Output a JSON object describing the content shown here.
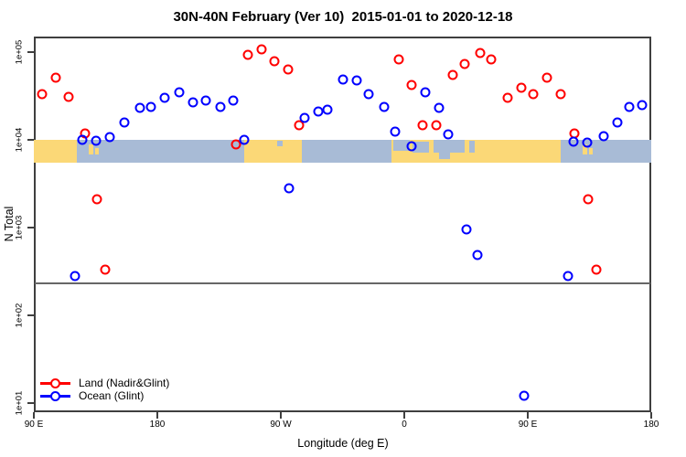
{
  "title": "30N-40N February (Ver 10)  2015-01-01 to 2020-12-18",
  "chart_data": {
    "type": "scatter",
    "title": "30N-40N February (Ver 10)  2015-01-01 to 2020-12-18",
    "xlabel": "Longitude (deg E)",
    "ylabel": "N Total",
    "y_scale": "log10",
    "y_ticks": [
      {
        "value": 10,
        "label": "1e+01"
      },
      {
        "value": 100,
        "label": "1e+02"
      },
      {
        "value": 1000,
        "label": "1e+03"
      },
      {
        "value": 10000,
        "label": "1e+04"
      },
      {
        "value": 100000,
        "label": "1e+05"
      }
    ],
    "x_axis_wraps": true,
    "x_range_deg": [
      90,
      540
    ],
    "x_ticks": [
      {
        "pos": 90,
        "label": "90 E"
      },
      {
        "pos": 180,
        "label": "180"
      },
      {
        "pos": 270,
        "label": "90 W"
      },
      {
        "pos": 360,
        "label": "0"
      },
      {
        "pos": 450,
        "label": "90 E"
      },
      {
        "pos": 540,
        "label": "180"
      }
    ],
    "grid": "off",
    "legend_position": "bottom-left",
    "cutoff_line_value": 230,
    "map_band": {
      "description": "land/ocean strip of the 30N-40N latitude belt",
      "top_value": 10000,
      "bottom_value": 5500,
      "land_color": "#FBD877",
      "ocean_color": "#A8BBD6",
      "segments": [
        {
          "type": "land",
          "x0": 90,
          "x1": 121.3
        },
        {
          "type": "ocean",
          "x0": 121.3,
          "x1": 243.3
        },
        {
          "type": "land",
          "x0": 130,
          "x1": 133,
          "top": 0.2,
          "h": 0.45
        },
        {
          "type": "land",
          "x0": 134.5,
          "x1": 137.5,
          "top": 0.35,
          "h": 0.3
        },
        {
          "type": "land",
          "x0": 243.3,
          "x1": 285.3
        },
        {
          "type": "ocean",
          "x0": 267.5,
          "x1": 271,
          "top": 0.05,
          "h": 0.25
        },
        {
          "type": "ocean",
          "x0": 285.3,
          "x1": 350.7
        },
        {
          "type": "land",
          "x0": 350.7,
          "x1": 474
        },
        {
          "type": "ocean",
          "x0": 352,
          "x1": 364,
          "top": 0,
          "h": 0.5
        },
        {
          "type": "ocean",
          "x0": 366,
          "x1": 378,
          "top": 0.1,
          "h": 0.45
        },
        {
          "type": "ocean",
          "x0": 381,
          "x1": 404,
          "top": 0,
          "h": 0.55
        },
        {
          "type": "ocean",
          "x0": 385,
          "x1": 393,
          "top": 0.55,
          "h": 0.3
        },
        {
          "type": "ocean",
          "x0": 407,
          "x1": 411,
          "top": 0.05,
          "h": 0.5
        },
        {
          "type": "ocean",
          "x0": 474,
          "x1": 540
        },
        {
          "type": "land",
          "x0": 490,
          "x1": 493,
          "top": 0.2,
          "h": 0.45
        },
        {
          "type": "land",
          "x0": 494.5,
          "x1": 497.5,
          "top": 0.35,
          "h": 0.3
        }
      ]
    },
    "series": [
      {
        "name": "Land (Nadir&Glint)",
        "color": "#FF0000",
        "marker": "open-circle",
        "points": [
          [
            96,
            33000
          ],
          [
            106,
            51000
          ],
          [
            115,
            31000
          ],
          [
            127,
            11800
          ],
          [
            136,
            2100
          ],
          [
            142,
            330
          ],
          [
            237,
            8900
          ],
          [
            246,
            93000
          ],
          [
            256,
            107000
          ],
          [
            265,
            78000
          ],
          [
            275,
            63000
          ],
          [
            283,
            14700
          ],
          [
            356,
            83000
          ],
          [
            365,
            42000
          ],
          [
            373,
            14800
          ],
          [
            383,
            14800
          ],
          [
            395,
            55000
          ],
          [
            404,
            73000
          ],
          [
            415,
            98000
          ],
          [
            423,
            83000
          ],
          [
            435,
            30000
          ],
          [
            445,
            39000
          ],
          [
            454,
            33000
          ],
          [
            464,
            51000
          ],
          [
            474,
            33000
          ],
          [
            484,
            11800
          ],
          [
            494,
            2100
          ],
          [
            500,
            330
          ]
        ]
      },
      {
        "name": "Ocean (Glint)",
        "color": "#0000FF",
        "marker": "open-circle",
        "points": [
          [
            120,
            280
          ],
          [
            125,
            10000
          ],
          [
            135,
            9800
          ],
          [
            145,
            10700
          ],
          [
            156,
            15800
          ],
          [
            167,
            23000
          ],
          [
            175,
            23500
          ],
          [
            185,
            30000
          ],
          [
            196,
            35000
          ],
          [
            206,
            27000
          ],
          [
            215,
            28000
          ],
          [
            226,
            23500
          ],
          [
            235,
            28000
          ],
          [
            243,
            10000
          ],
          [
            276,
            2800
          ],
          [
            287,
            17800
          ],
          [
            297,
            21000
          ],
          [
            304,
            22000
          ],
          [
            315,
            49000
          ],
          [
            325,
            48000
          ],
          [
            334,
            33000
          ],
          [
            345,
            23500
          ],
          [
            353,
            12400
          ],
          [
            365,
            8500
          ],
          [
            375,
            35000
          ],
          [
            385,
            23000
          ],
          [
            392,
            11600
          ],
          [
            405,
            950
          ],
          [
            413,
            490
          ],
          [
            447,
            12
          ],
          [
            479,
            280
          ],
          [
            483,
            9600
          ],
          [
            493,
            9400
          ],
          [
            505,
            10900
          ],
          [
            515,
            15800
          ],
          [
            524,
            23500
          ],
          [
            533,
            25000
          ]
        ]
      }
    ]
  }
}
